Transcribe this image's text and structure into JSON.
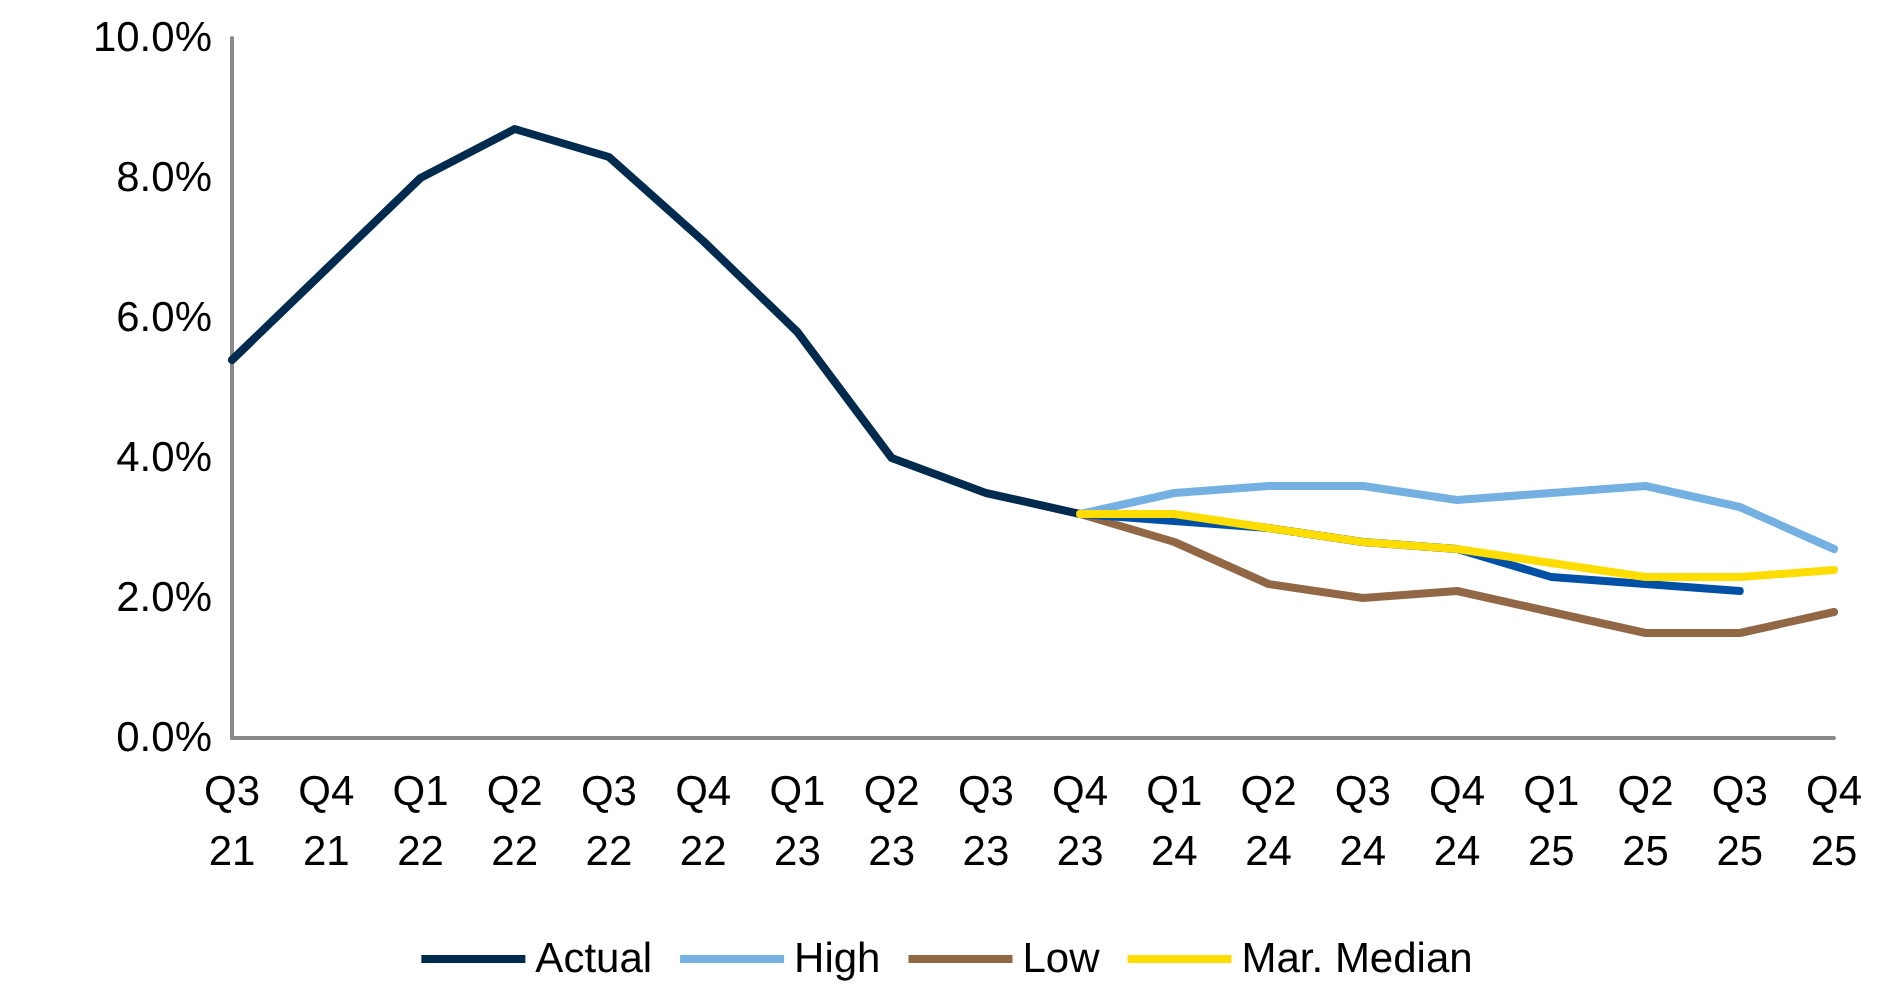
{
  "chart_data": {
    "type": "line",
    "categories": [
      "Q3\n21",
      "Q4\n21",
      "Q1\n22",
      "Q2\n22",
      "Q3\n22",
      "Q4\n22",
      "Q1\n23",
      "Q2\n23",
      "Q3\n23",
      "Q4\n23",
      "Q1\n24",
      "Q2\n24",
      "Q3\n24",
      "Q4\n24",
      "Q1\n25",
      "Q2\n25",
      "Q3\n25",
      "Q4\n25"
    ],
    "series": [
      {
        "name": "Actual",
        "color": "#002a4e",
        "values": [
          5.4,
          6.7,
          8.0,
          8.7,
          8.3,
          7.1,
          5.8,
          4.0,
          3.5,
          3.2,
          null,
          null,
          null,
          null,
          null,
          null,
          null,
          null
        ]
      },
      {
        "name": "High",
        "color": "#74b1e2",
        "values": [
          null,
          null,
          null,
          null,
          null,
          null,
          null,
          null,
          null,
          3.2,
          3.5,
          3.6,
          3.6,
          3.4,
          3.5,
          3.6,
          3.3,
          2.7
        ]
      },
      {
        "name": "Low",
        "color": "#926746",
        "values": [
          null,
          null,
          null,
          null,
          null,
          null,
          null,
          null,
          null,
          3.2,
          2.8,
          2.2,
          2.0,
          2.1,
          1.8,
          1.5,
          1.5,
          1.8
        ]
      },
      {
        "color": "#0051a5",
        "values": [
          null,
          null,
          null,
          null,
          null,
          null,
          null,
          null,
          null,
          3.2,
          3.1,
          3.0,
          2.8,
          2.7,
          2.3,
          2.2,
          2.1,
          null
        ]
      },
      {
        "name": "Mar. Median",
        "color": "#ffdd00",
        "values": [
          null,
          null,
          null,
          null,
          null,
          null,
          null,
          null,
          null,
          3.2,
          3.2,
          3.0,
          2.8,
          2.7,
          2.5,
          2.3,
          2.3,
          2.4
        ]
      }
    ],
    "ylim": [
      0,
      10
    ],
    "yticks": [
      {
        "value": 0,
        "label": "0.0%"
      },
      {
        "value": 2,
        "label": "2.0%"
      },
      {
        "value": 4,
        "label": "4.0%"
      },
      {
        "value": 6,
        "label": "6.0%"
      },
      {
        "value": 8,
        "label": "8.0%"
      },
      {
        "value": 10,
        "label": "10.0%"
      }
    ],
    "grid": false,
    "legend": "bottom",
    "marker": "none",
    "line_style": "solid"
  }
}
